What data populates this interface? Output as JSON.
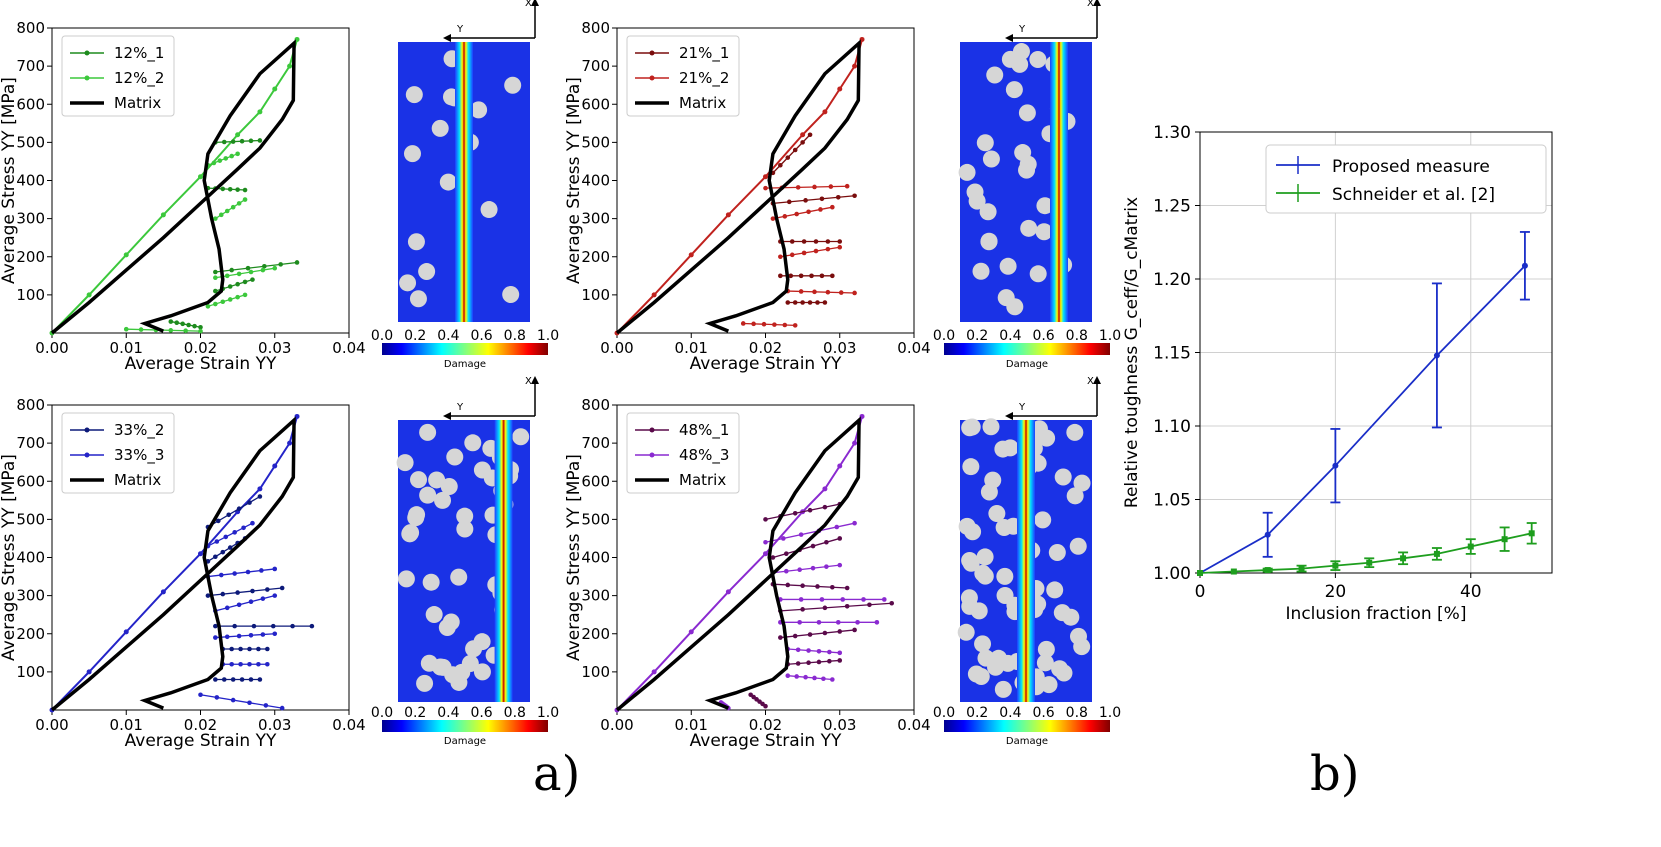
{
  "colorbar": {
    "ticks": [
      "0.0",
      "0.2",
      "0.4",
      "0.6",
      "0.8",
      "1.0"
    ],
    "label": "Damage"
  },
  "axes_arrow": {
    "x": "X",
    "y": "Y"
  },
  "chart_data": [
    {
      "panel": "a1",
      "type": "line",
      "xlabel": "Average Strain YY",
      "ylabel": "Average Stress YY [MPa]",
      "xlim": [
        0,
        0.04
      ],
      "ylim": [
        0,
        800
      ],
      "xticks": [
        "0.00",
        "0.01",
        "0.02",
        "0.03",
        "0.04"
      ],
      "yticks": [
        "100",
        "200",
        "300",
        "400",
        "500",
        "600",
        "700",
        "800"
      ],
      "series": [
        {
          "name": "12%_1",
          "color": "#1e8b1e"
        },
        {
          "name": "12%_2",
          "color": "#3cc83c"
        },
        {
          "name": "Matrix",
          "color": "#000000"
        }
      ],
      "branches": [
        [
          0.022,
          500,
          0.028,
          505
        ],
        [
          0.021,
          440,
          0.025,
          470
        ],
        [
          0.021,
          380,
          0.026,
          375
        ],
        [
          0.022,
          300,
          0.026,
          350
        ],
        [
          0.022,
          160,
          0.033,
          185
        ],
        [
          0.022,
          145,
          0.03,
          170
        ],
        [
          0.022,
          110,
          0.027,
          140
        ],
        [
          0.021,
          70,
          0.026,
          100
        ],
        [
          0.016,
          30,
          0.02,
          15
        ],
        [
          0.01,
          10,
          0.02,
          5
        ]
      ],
      "crack_pos": 0.5
    },
    {
      "panel": "a2",
      "type": "line",
      "xlabel": "Average Strain YY",
      "ylabel": "Average Stress YY [MPa]",
      "xlim": [
        0,
        0.04
      ],
      "ylim": [
        0,
        800
      ],
      "xticks": [
        "0.00",
        "0.01",
        "0.02",
        "0.03",
        "0.04"
      ],
      "yticks": [
        "100",
        "200",
        "300",
        "400",
        "500",
        "600",
        "700",
        "800"
      ],
      "series": [
        {
          "name": "21%_1",
          "color": "#7a0d0d"
        },
        {
          "name": "21%_2",
          "color": "#c0221e"
        },
        {
          "name": "Matrix",
          "color": "#000000"
        }
      ],
      "branches": [
        [
          0.021,
          420,
          0.026,
          520
        ],
        [
          0.02,
          380,
          0.031,
          385
        ],
        [
          0.021,
          340,
          0.032,
          360
        ],
        [
          0.021,
          300,
          0.029,
          330
        ],
        [
          0.022,
          240,
          0.03,
          240
        ],
        [
          0.022,
          200,
          0.03,
          225
        ],
        [
          0.022,
          150,
          0.029,
          150
        ],
        [
          0.023,
          110,
          0.032,
          105
        ],
        [
          0.023,
          80,
          0.028,
          80
        ],
        [
          0.017,
          25,
          0.024,
          20
        ]
      ],
      "crack_pos": 0.75
    },
    {
      "panel": "a3",
      "type": "line",
      "xlabel": "Average Strain YY",
      "ylabel": "Average Stress YY [MPa]",
      "xlim": [
        0,
        0.04
      ],
      "ylim": [
        0,
        800
      ],
      "xticks": [
        "0.00",
        "0.01",
        "0.02",
        "0.03",
        "0.04"
      ],
      "yticks": [
        "100",
        "200",
        "300",
        "400",
        "500",
        "600",
        "700",
        "800"
      ],
      "series": [
        {
          "name": "33%_2",
          "color": "#0d1a7a"
        },
        {
          "name": "33%_3",
          "color": "#2424c8"
        },
        {
          "name": "Matrix",
          "color": "#000000"
        }
      ],
      "branches": [
        [
          0.021,
          480,
          0.028,
          560
        ],
        [
          0.021,
          430,
          0.027,
          490
        ],
        [
          0.021,
          390,
          0.026,
          450
        ],
        [
          0.021,
          350,
          0.03,
          370
        ],
        [
          0.021,
          300,
          0.031,
          320
        ],
        [
          0.022,
          260,
          0.03,
          300
        ],
        [
          0.022,
          220,
          0.035,
          220
        ],
        [
          0.022,
          190,
          0.03,
          200
        ],
        [
          0.023,
          160,
          0.029,
          160
        ],
        [
          0.023,
          120,
          0.029,
          120
        ],
        [
          0.022,
          80,
          0.028,
          80
        ],
        [
          0.02,
          40,
          0.031,
          5
        ]
      ],
      "crack_pos": 0.8
    },
    {
      "panel": "a4",
      "type": "line",
      "xlabel": "Average Strain YY",
      "ylabel": "Average Stress YY [MPa]",
      "xlim": [
        0,
        0.04
      ],
      "ylim": [
        0,
        800
      ],
      "xticks": [
        "0.00",
        "0.01",
        "0.02",
        "0.03",
        "0.04"
      ],
      "yticks": [
        "100",
        "200",
        "300",
        "400",
        "500",
        "600",
        "700",
        "800"
      ],
      "series": [
        {
          "name": "48%_1",
          "color": "#5a0a4a"
        },
        {
          "name": "48%_3",
          "color": "#8a2ad0"
        },
        {
          "name": "Matrix",
          "color": "#000000"
        }
      ],
      "branches": [
        [
          0.02,
          500,
          0.03,
          540
        ],
        [
          0.02,
          440,
          0.032,
          490
        ],
        [
          0.021,
          400,
          0.03,
          450
        ],
        [
          0.021,
          360,
          0.03,
          380
        ],
        [
          0.021,
          330,
          0.031,
          320
        ],
        [
          0.022,
          290,
          0.036,
          290
        ],
        [
          0.022,
          260,
          0.037,
          280
        ],
        [
          0.022,
          230,
          0.035,
          230
        ],
        [
          0.022,
          190,
          0.032,
          210
        ],
        [
          0.023,
          160,
          0.03,
          150
        ],
        [
          0.023,
          120,
          0.03,
          130
        ],
        [
          0.023,
          90,
          0.029,
          80
        ],
        [
          0.018,
          40,
          0.02,
          10
        ],
        [
          0.014,
          20,
          0.015,
          5
        ]
      ],
      "crack_pos": 0.5
    },
    {
      "panel": "b",
      "type": "line",
      "xlabel": "Inclusion fraction [%]",
      "ylabel": "Relative toughness G_ceff/G_cMatrix",
      "xlim": [
        0,
        52
      ],
      "ylim": [
        1.0,
        1.3
      ],
      "xticks": [
        "0",
        "20",
        "40"
      ],
      "yticks": [
        "1.00",
        "1.05",
        "1.10",
        "1.15",
        "1.20",
        "1.25",
        "1.30"
      ],
      "series": [
        {
          "name": "Proposed measure",
          "color": "#1a2ec8",
          "x": [
            0,
            10,
            20,
            35,
            48
          ],
          "y": [
            1.0,
            1.026,
            1.073,
            1.148,
            1.209
          ],
          "err": [
            0,
            0.015,
            0.025,
            0.049,
            0.023
          ]
        },
        {
          "name": "Schneider et al. [2]",
          "color": "#1e9e1e",
          "x": [
            0,
            5,
            10,
            15,
            20,
            25,
            30,
            35,
            40,
            45,
            49
          ],
          "y": [
            1.0,
            1.001,
            1.002,
            1.003,
            1.005,
            1.007,
            1.01,
            1.013,
            1.018,
            1.023,
            1.027
          ],
          "err": [
            0,
            0,
            0.001,
            0.002,
            0.003,
            0.003,
            0.004,
            0.004,
            0.005,
            0.008,
            0.007
          ]
        }
      ]
    }
  ],
  "figure_labels": {
    "a": "a)",
    "b": "b)"
  }
}
